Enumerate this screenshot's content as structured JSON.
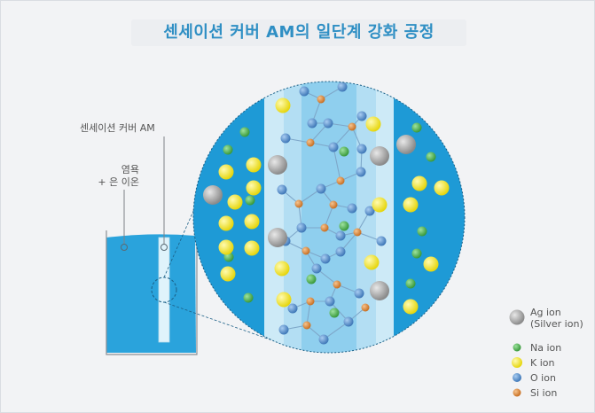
{
  "title": "센세이션 커버 AM의 일단계 강화 공정",
  "labels": {
    "cover": "센세이션 커버 AM",
    "bath_line1": "염욕",
    "bath_line2": "+ 은 이온"
  },
  "legend": [
    {
      "label": "Ag ion",
      "sub": "(Silver ion)",
      "color": "#9a9a9a",
      "icon": "ag-ion-icon"
    },
    {
      "label": "Na ion",
      "sub": "",
      "color": "#4caf50",
      "icon": "na-ion-icon"
    },
    {
      "label": "K ion",
      "sub": "",
      "color": "#f2e632",
      "icon": "k-ion-icon"
    },
    {
      "label": "O ion",
      "sub": "",
      "color": "#4f86c6",
      "icon": "o-ion-icon"
    },
    {
      "label": "Si ion",
      "sub": "",
      "color": "#e0893a",
      "icon": "si-ion-icon"
    }
  ],
  "colors": {
    "title": "#2f8fc4",
    "water": "#2aa3dc",
    "circle_outer": "#1e9ad6",
    "band_light": "#cdeaf7",
    "band_mid": "#8fcfee"
  }
}
